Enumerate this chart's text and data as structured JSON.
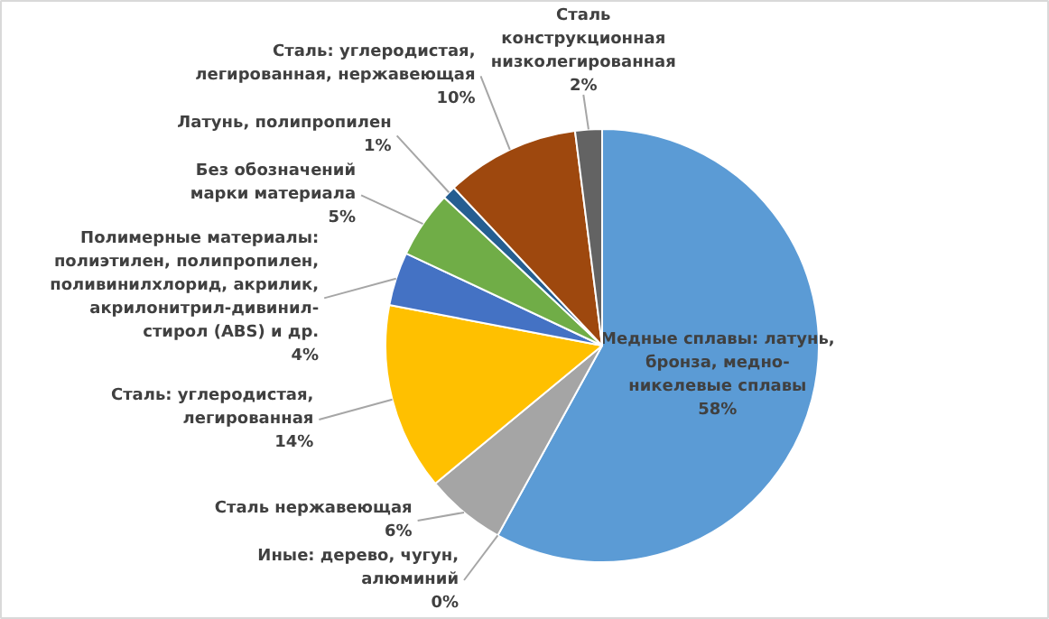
{
  "chart_data": {
    "type": "pie",
    "categories": [
      "Медные сплавы: латунь,\nбронза, медно-\nникелевые сплавы",
      "Иные: дерево, чугун,\nалюминий",
      "Сталь нержавеющая",
      "Сталь: углеродистая,\nлегированная",
      "Полимерные материалы:\nполиэтилен, полипропилен,\nполивинилхлорид, акрилик,\nакрилонитрил-дивинил-\nстирол (ABS) и др.",
      "Без обозначений\nмарки материала",
      "Латунь, полипропилен",
      "Сталь: углеродистая,\nлегированная, нержавеющая",
      "Сталь\nконструкционная\nнизколегированная"
    ],
    "values": [
      58,
      0,
      6,
      14,
      4,
      5,
      1,
      10,
      2
    ],
    "value_labels": [
      "58%",
      "0%",
      "6%",
      "14%",
      "4%",
      "5%",
      "1%",
      "10%",
      "2%"
    ],
    "colors": [
      "#5b9bd5",
      "#ed7d31",
      "#a5a5a5",
      "#ffc000",
      "#4472c4",
      "#70ad47",
      "#255e91",
      "#9e480e",
      "#636363"
    ]
  }
}
